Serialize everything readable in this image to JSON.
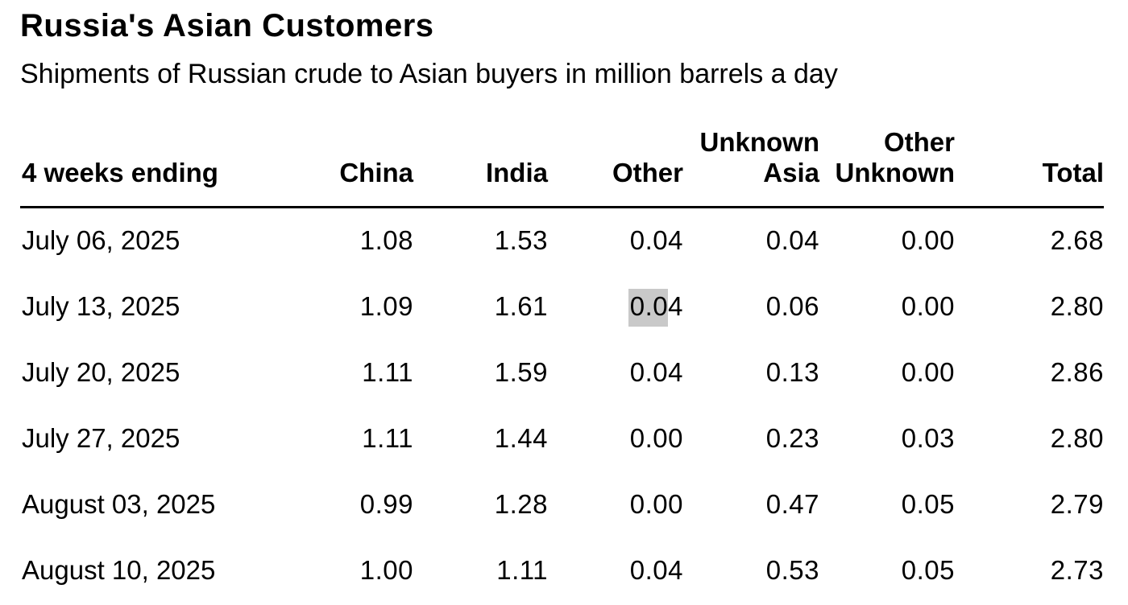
{
  "header": {
    "title": "Russia's Asian Customers",
    "subtitle": "Shipments of Russian crude to Asian buyers in million barrels a day"
  },
  "table": {
    "columns": [
      "4 weeks ending",
      "China",
      "India",
      "Other",
      "Unknown Asia",
      "Other Unknown",
      "Total"
    ],
    "rows": [
      [
        "July 06, 2025",
        "1.08",
        "1.53",
        "0.04",
        "0.04",
        "0.00",
        "2.68"
      ],
      [
        "July 13, 2025",
        "1.09",
        "1.61",
        "0.04",
        "0.06",
        "0.00",
        "2.80"
      ],
      [
        "July 20, 2025",
        "1.11",
        "1.59",
        "0.04",
        "0.13",
        "0.00",
        "2.86"
      ],
      [
        "July 27, 2025",
        "1.11",
        "1.44",
        "0.00",
        "0.23",
        "0.03",
        "2.80"
      ],
      [
        "August 03, 2025",
        "0.99",
        "1.28",
        "0.00",
        "0.47",
        "0.05",
        "2.79"
      ],
      [
        "August 10, 2025",
        "1.00",
        "1.11",
        "0.04",
        "0.53",
        "0.05",
        "2.73"
      ]
    ],
    "selection": {
      "row_index": 1,
      "col_index": 3,
      "selected_text": "0.0",
      "highlight_color": "#c9c9c9"
    }
  },
  "colors": {
    "background": "#ffffff",
    "text": "#000000",
    "header_rule": "#000000",
    "selection_highlight": "#c9c9c9"
  },
  "chart_data": {
    "type": "table",
    "title": "Russia's Asian Customers",
    "subtitle": "Shipments of Russian crude to Asian buyers in million barrels a day",
    "row_label_header": "4 weeks ending",
    "categories": [
      "July 06, 2025",
      "July 13, 2025",
      "July 20, 2025",
      "July 27, 2025",
      "August 03, 2025",
      "August 10, 2025"
    ],
    "series": [
      {
        "name": "China",
        "values": [
          1.08,
          1.09,
          1.11,
          1.11,
          0.99,
          1.0
        ]
      },
      {
        "name": "India",
        "values": [
          1.53,
          1.61,
          1.59,
          1.44,
          1.28,
          1.11
        ]
      },
      {
        "name": "Other",
        "values": [
          0.04,
          0.04,
          0.04,
          0.0,
          0.0,
          0.04
        ]
      },
      {
        "name": "Unknown Asia",
        "values": [
          0.04,
          0.06,
          0.13,
          0.23,
          0.47,
          0.53
        ]
      },
      {
        "name": "Other Unknown",
        "values": [
          0.0,
          0.0,
          0.0,
          0.03,
          0.05,
          0.05
        ]
      },
      {
        "name": "Total",
        "values": [
          2.68,
          2.8,
          2.86,
          2.8,
          2.79,
          2.73
        ]
      }
    ],
    "units": "million barrels a day",
    "grid": "header rule only",
    "legend_position": "none"
  }
}
